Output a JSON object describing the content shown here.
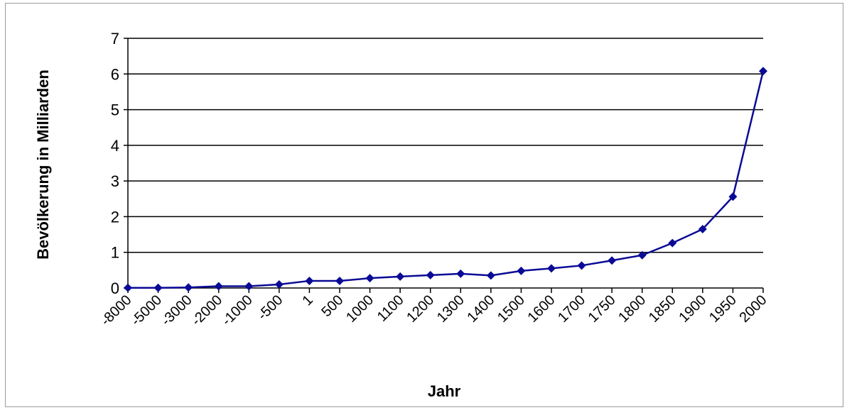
{
  "chart_data": {
    "type": "line",
    "xlabel": "Jahr",
    "ylabel": "Bevölkerung in Milliarden",
    "ylim": [
      0,
      7
    ],
    "yticks": [
      "0",
      "1",
      "2",
      "3",
      "4",
      "5",
      "6",
      "7"
    ],
    "grid": true,
    "legend": "none",
    "line_color": "#0a0a96",
    "categories": [
      "-8000",
      "-5000",
      "-3000",
      "-2000",
      "-1000",
      "-500",
      "1",
      "500",
      "1000",
      "1100",
      "1200",
      "1300",
      "1400",
      "1500",
      "1600",
      "1700",
      "1750",
      "1800",
      "1850",
      "1900",
      "1950",
      "2000"
    ],
    "series": [
      {
        "values": [
          0.005,
          0.005,
          0.014,
          0.05,
          0.05,
          0.1,
          0.2,
          0.2,
          0.275,
          0.32,
          0.36,
          0.4,
          0.35,
          0.48,
          0.55,
          0.63,
          0.77,
          0.92,
          1.26,
          1.65,
          2.56,
          6.08
        ]
      }
    ]
  }
}
